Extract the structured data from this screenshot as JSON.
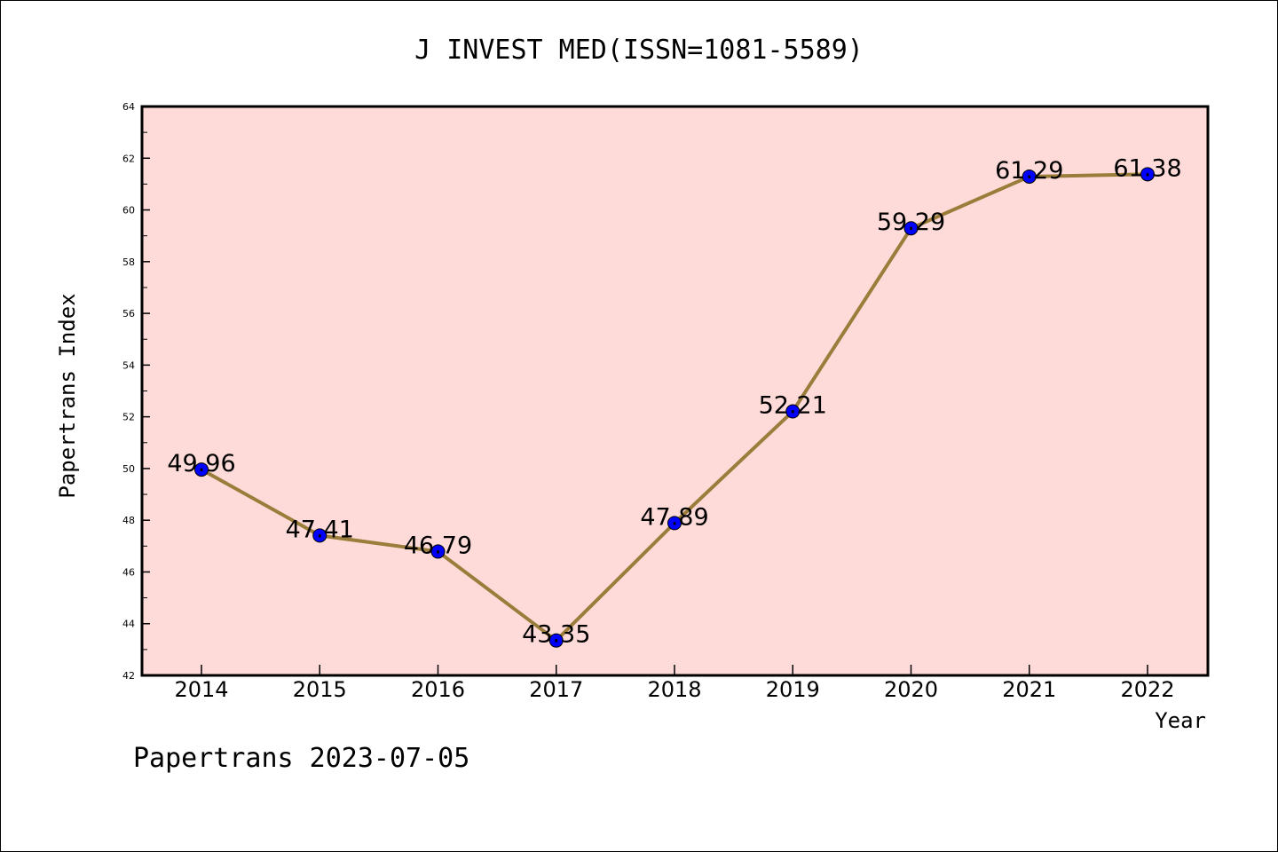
{
  "chart_data": {
    "type": "line",
    "title": "J INVEST MED(ISSN=1081-5589)",
    "xlabel": "Year",
    "ylabel": "Papertrans Index",
    "categories": [
      "2014",
      "2015",
      "2016",
      "2017",
      "2018",
      "2019",
      "2020",
      "2021",
      "2022"
    ],
    "series": [
      {
        "values": [
          49.96,
          47.41,
          46.79,
          43.35,
          47.89,
          52.21,
          59.29,
          61.29,
          61.38
        ],
        "labels": [
          "49.96",
          "47.41",
          "46.79",
          "43.35",
          "47.89",
          "52.21",
          "59.29",
          "61.29",
          "61.38"
        ]
      }
    ],
    "ylim": [
      42,
      64
    ],
    "yticks": [
      "42",
      "44",
      "46",
      "48",
      "50",
      "52",
      "54",
      "56",
      "58",
      "60",
      "62",
      "64"
    ],
    "grid": false,
    "legend": "none",
    "footer": "Papertrans 2023-07-05",
    "colors": {
      "plot_background": "#fedbd9",
      "line": "#9a7d3a",
      "marker": "#0000ff",
      "axis": "#000000"
    }
  }
}
